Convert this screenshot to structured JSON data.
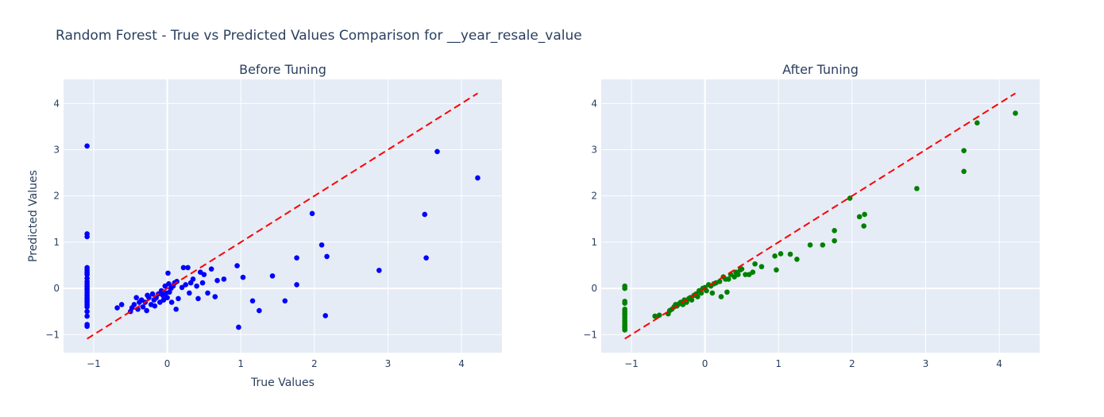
{
  "chart_data": [
    {
      "type": "scatter",
      "title": "Before Tuning",
      "xlabel": "True Values",
      "ylabel": "Predicted Values",
      "xlim": [
        -1.41,
        4.55
      ],
      "ylim": [
        -1.39,
        4.52
      ],
      "xticks": [
        -1,
        0,
        1,
        2,
        3,
        4
      ],
      "yticks": [
        -1,
        0,
        1,
        2,
        3,
        4
      ],
      "grid": true,
      "color": "#0000ff",
      "points": {
        "x": [
          -1.09,
          -1.09,
          -1.09,
          -1.09,
          -1.09,
          -1.09,
          -1.09,
          -1.09,
          -1.09,
          -1.09,
          -1.09,
          -1.09,
          -1.09,
          -1.09,
          -1.09,
          -1.09,
          -1.09,
          -1.09,
          -1.09,
          -1.09,
          -1.09,
          -1.09,
          -1.09,
          -1.09,
          -0.68,
          -0.62,
          -0.5,
          -0.48,
          -0.45,
          -0.42,
          -0.4,
          -0.38,
          -0.35,
          -0.33,
          -0.3,
          -0.28,
          -0.27,
          -0.25,
          -0.22,
          -0.2,
          -0.18,
          -0.17,
          -0.15,
          -0.12,
          -0.1,
          -0.08,
          -0.06,
          -0.05,
          -0.03,
          -0.02,
          0,
          0.01,
          0.02,
          0.03,
          0.05,
          0.06,
          0.08,
          0.1,
          0.12,
          0.13,
          0.15,
          0.2,
          0.22,
          0.25,
          0.28,
          0.3,
          0.32,
          0.35,
          0.4,
          0.42,
          0.45,
          0.48,
          0.5,
          0.55,
          0.6,
          0.65,
          0.68,
          0.77,
          0.95,
          0.97,
          1.03,
          1.16,
          1.25,
          1.43,
          1.6,
          1.76,
          1.76,
          1.97,
          2.1,
          2.15,
          2.17,
          2.88,
          3.5,
          3.52,
          3.67,
          4.22
        ],
        "y": [
          3.08,
          1.18,
          1.12,
          0.45,
          0.4,
          0.35,
          0.3,
          0.22,
          0.15,
          0.1,
          0.05,
          0,
          -0.05,
          -0.1,
          -0.15,
          -0.2,
          -0.25,
          -0.3,
          -0.35,
          -0.4,
          -0.5,
          -0.6,
          -0.78,
          -0.82,
          -0.42,
          -0.35,
          -0.5,
          -0.42,
          -0.35,
          -0.2,
          -0.45,
          -0.3,
          -0.25,
          -0.4,
          -0.3,
          -0.48,
          -0.15,
          -0.2,
          -0.35,
          -0.12,
          -0.25,
          -0.38,
          -0.2,
          -0.12,
          -0.3,
          -0.05,
          -0.15,
          -0.25,
          0.05,
          -0.1,
          -0.2,
          0.33,
          0.1,
          -0.08,
          0.0,
          -0.3,
          0.05,
          0.12,
          -0.45,
          0.15,
          -0.22,
          0.02,
          0.45,
          0.08,
          0.45,
          -0.1,
          0.12,
          0.2,
          0.05,
          -0.22,
          0.35,
          0.12,
          0.3,
          -0.1,
          0.42,
          -0.18,
          0.17,
          0.2,
          0.49,
          -0.84,
          0.24,
          -0.27,
          -0.48,
          0.27,
          -0.27,
          0.08,
          0.66,
          1.62,
          0.94,
          -0.59,
          0.69,
          0.39,
          1.6,
          0.66,
          2.96,
          2.39
        ]
      },
      "reference_line": {
        "x": [
          -1.09,
          4.22
        ],
        "y": [
          -1.09,
          4.22
        ],
        "color": "#ff0000",
        "dash": "dashed"
      }
    },
    {
      "type": "scatter",
      "title": "After Tuning",
      "xlim": [
        -1.41,
        4.55
      ],
      "ylim": [
        -1.39,
        4.52
      ],
      "xticks": [
        -1,
        0,
        1,
        2,
        3,
        4
      ],
      "yticks": [
        -1,
        0,
        1,
        2,
        3,
        4
      ],
      "grid": true,
      "color": "#008000",
      "points": {
        "x": [
          -1.09,
          -1.09,
          -1.09,
          -1.09,
          -1.09,
          -1.09,
          -1.09,
          -1.09,
          -1.09,
          -1.09,
          -1.09,
          -1.09,
          -1.09,
          -1.09,
          -1.09,
          -1.09,
          -0.68,
          -0.62,
          -0.5,
          -0.48,
          -0.45,
          -0.42,
          -0.4,
          -0.38,
          -0.35,
          -0.33,
          -0.3,
          -0.28,
          -0.25,
          -0.22,
          -0.2,
          -0.18,
          -0.15,
          -0.12,
          -0.1,
          -0.08,
          -0.05,
          -0.03,
          0,
          0.02,
          0.05,
          0.08,
          0.1,
          0.12,
          0.15,
          0.2,
          0.22,
          0.25,
          0.28,
          0.3,
          0.32,
          0.35,
          0.4,
          0.42,
          0.45,
          0.48,
          0.5,
          0.55,
          0.6,
          0.65,
          0.68,
          0.77,
          0.95,
          0.97,
          1.03,
          1.16,
          1.25,
          1.43,
          1.6,
          1.76,
          1.76,
          1.97,
          2.1,
          2.16,
          2.17,
          2.88,
          3.52,
          3.52,
          3.7,
          4.22
        ],
        "y": [
          0.05,
          0.0,
          -0.28,
          -0.32,
          -0.45,
          -0.5,
          -0.55,
          -0.6,
          -0.65,
          -0.7,
          -0.74,
          -0.78,
          -0.82,
          -0.85,
          -0.88,
          -0.9,
          -0.6,
          -0.58,
          -0.55,
          -0.48,
          -0.45,
          -0.4,
          -0.35,
          -0.38,
          -0.33,
          -0.3,
          -0.35,
          -0.25,
          -0.3,
          -0.22,
          -0.2,
          -0.25,
          -0.15,
          -0.12,
          -0.18,
          -0.05,
          -0.1,
          0.0,
          0.02,
          -0.05,
          0.08,
          0.05,
          -0.1,
          0.1,
          0.12,
          0.15,
          -0.18,
          0.25,
          0.2,
          -0.08,
          0.2,
          0.3,
          0.25,
          0.35,
          0.3,
          0.4,
          0.42,
          0.3,
          0.3,
          0.35,
          0.53,
          0.47,
          0.7,
          0.4,
          0.75,
          0.74,
          0.63,
          0.94,
          0.94,
          1.25,
          1.03,
          1.95,
          1.55,
          1.35,
          1.6,
          2.16,
          2.98,
          2.53,
          3.58,
          3.79
        ]
      },
      "reference_line": {
        "x": [
          -1.09,
          4.22
        ],
        "y": [
          -1.09,
          4.22
        ],
        "color": "#ff0000",
        "dash": "dashed"
      }
    }
  ],
  "figure_title": "Random Forest - True vs Predicted Values Comparison for __year_resale_value"
}
